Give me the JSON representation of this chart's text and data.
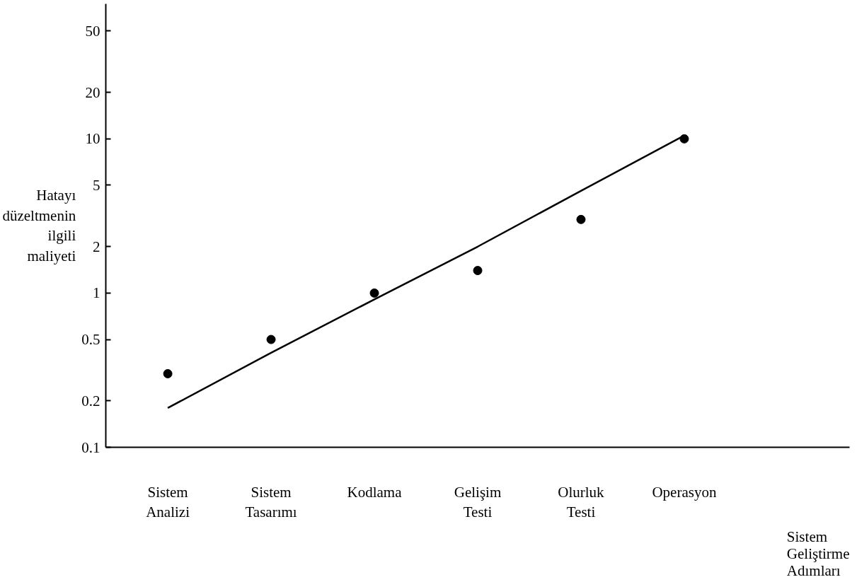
{
  "chart_data": {
    "type": "line",
    "xlabel": "Sistem Geliştirme Adımları",
    "ylabel": "Hatayı düzeltmenin ilgili maliyeti",
    "categories": [
      "Sistem Analizi",
      "Sistem Tasarımı",
      "Kodlama",
      "Gelişim Testi",
      "Olurluk Testi",
      "Operasyon"
    ],
    "series": [
      {
        "type": "scatter",
        "color": "#000000",
        "marker": "circle",
        "values": [
          0.3,
          0.5,
          1,
          1.4,
          3,
          10
        ]
      },
      {
        "color": "#000000",
        "marker": "none",
        "values": [
          0.18,
          0.41,
          0.91,
          2.0,
          4.6,
          10.5
        ]
      }
    ],
    "log": "y",
    "ylim": [
      0.1,
      75
    ],
    "yticks": [
      0.1,
      0.2,
      0.5,
      1,
      2,
      5,
      10,
      20,
      50
    ],
    "grid": false,
    "line_style": "solid"
  }
}
